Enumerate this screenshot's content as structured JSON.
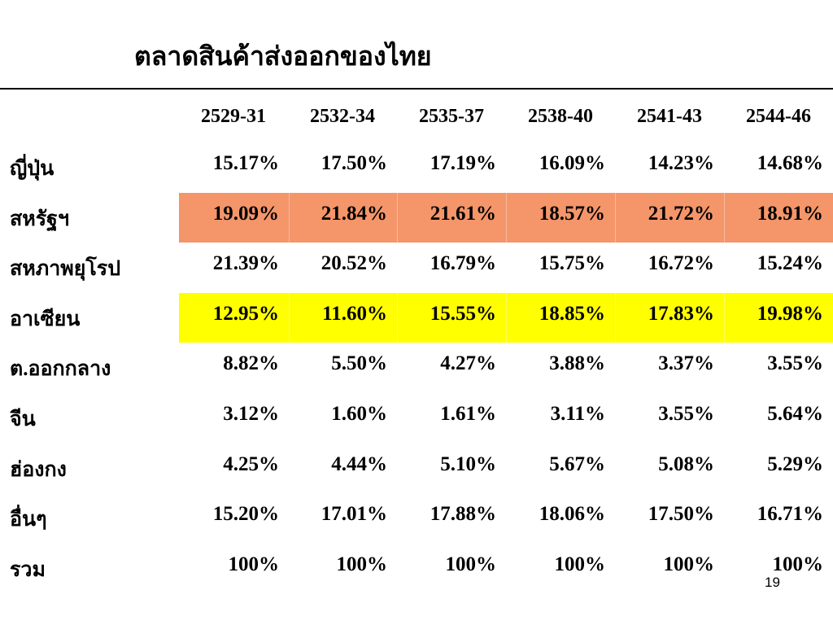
{
  "title": "ตลาดสินค้าส่งออกของไทย",
  "table": {
    "columns": [
      "2529-31",
      "2532-34",
      "2535-37",
      "2538-40",
      "2541-43",
      "2544-46"
    ],
    "rows": [
      [
        "ญี่ปุ่น",
        "15.17%",
        "17.50%",
        "17.19%",
        "16.09%",
        "14.23%",
        "14.68%"
      ],
      [
        "สหรัฐฯ",
        "19.09%",
        "21.84%",
        "21.61%",
        "18.57%",
        "21.72%",
        "18.91%"
      ],
      [
        "สหภาพยุโรป",
        "21.39%",
        "20.52%",
        "16.79%",
        "15.75%",
        "16.72%",
        "15.24%"
      ],
      [
        "อาเซียน",
        "12.95%",
        "11.60%",
        "15.55%",
        "18.85%",
        "17.83%",
        "19.98%"
      ],
      [
        "ต.ออกกลาง",
        "8.82%",
        "5.50%",
        "4.27%",
        "3.88%",
        "3.37%",
        "3.55%"
      ],
      [
        "จีน",
        "3.12%",
        "1.60%",
        "1.61%",
        "3.11%",
        "3.55%",
        "5.64%"
      ],
      [
        "ฮ่องกง",
        "4.25%",
        "4.44%",
        "5.10%",
        "5.67%",
        "5.08%",
        "5.29%"
      ],
      [
        "อื่นๆ",
        "15.20%",
        "17.01%",
        "17.88%",
        "18.06%",
        "17.50%",
        "16.71%"
      ],
      [
        "รวม",
        "100%",
        "100%",
        "100%",
        "100%",
        "100%",
        "100%"
      ]
    ]
  },
  "page_number": "19"
}
